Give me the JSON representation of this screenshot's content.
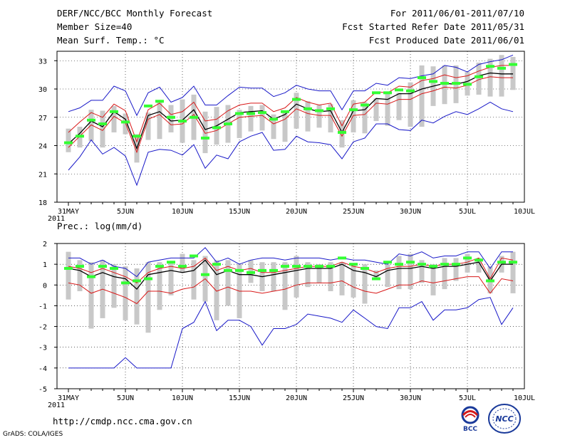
{
  "header": {
    "title": "DERF/NCC/BCC Monthly Forecast",
    "member_size": "Member Size=40",
    "variable": "Mean Surf. Temp.: °C",
    "period": "For 2011/06/01-2011/07/10",
    "refer_date": "Fcst Started Refer Date 2011/05/31",
    "produced_date": "Fcst Produced Date 2011/06/01"
  },
  "panel2_label": "Prec.: log(mm/d)",
  "footer": {
    "url": "http://cmdp.ncc.cma.gov.cn",
    "credit": "GrADS: COLA/IGES",
    "logo_bcc": "BCC",
    "logo_ncc": "NCC"
  },
  "colors": {
    "ensemble_bound": "#1818c8",
    "spread_line": "#d81818",
    "ensemble_mean": "#000000",
    "box": "#c8c8c8",
    "median": "#33ff33"
  },
  "chart_data": [
    {
      "type": "line",
      "title": "Mean Surf. Temp.: °C",
      "xlabel": "Date",
      "ylabel": "°C",
      "ylim": [
        18,
        34
      ],
      "yticks": [
        18,
        21,
        24,
        27,
        30,
        33
      ],
      "xtick_labels": [
        "31MAY",
        "5JUN",
        "10JUN",
        "15JUN",
        "20JUN",
        "25JUN",
        "30JUN",
        "5JUL",
        "10JUL"
      ],
      "xtick_year": "2011",
      "grid": true,
      "series": [
        {
          "name": "ensemble max",
          "color": "#1818c8",
          "values": [
            27.6,
            28.0,
            28.8,
            28.8,
            30.3,
            29.8,
            27.2,
            29.6,
            30.2,
            28.6,
            29.1,
            30.3,
            28.3,
            28.3,
            29.3,
            30.2,
            30.1,
            30.1,
            29.2,
            29.6,
            30.4,
            30.0,
            29.8,
            29.8,
            27.8,
            29.8,
            29.8,
            30.6,
            30.4,
            31.2,
            31.1,
            31.4,
            31.6,
            32.5,
            32.3,
            31.8,
            32.6,
            32.9,
            33.1,
            33.6
          ]
        },
        {
          "name": "upper spread",
          "color": "#d81818",
          "values": [
            25.4,
            26.5,
            27.5,
            27.0,
            28.4,
            27.7,
            24.4,
            27.8,
            28.5,
            27.3,
            27.6,
            28.6,
            26.6,
            26.8,
            27.7,
            28.3,
            28.5,
            28.5,
            27.6,
            28.0,
            29.1,
            28.6,
            28.3,
            28.5,
            26.1,
            28.4,
            28.6,
            29.7,
            29.6,
            30.3,
            30.2,
            30.9,
            31.1,
            31.5,
            31.2,
            31.4,
            31.9,
            32.3,
            32.5,
            32.5
          ]
        },
        {
          "name": "ensemble mean",
          "color": "#000000",
          "values": [
            24.2,
            25.3,
            26.6,
            26.0,
            27.6,
            26.8,
            23.7,
            27.2,
            27.6,
            26.6,
            26.7,
            27.8,
            25.7,
            26.1,
            26.8,
            27.5,
            27.6,
            27.7,
            26.8,
            27.3,
            28.4,
            27.9,
            27.6,
            27.7,
            25.4,
            27.7,
            27.8,
            29.0,
            28.9,
            29.5,
            29.5,
            30.0,
            30.3,
            30.6,
            30.5,
            30.8,
            31.4,
            31.7,
            31.6,
            31.6
          ]
        },
        {
          "name": "lower spread",
          "color": "#d81818",
          "values": [
            23.8,
            25.0,
            26.2,
            25.6,
            27.1,
            26.4,
            23.3,
            26.8,
            27.3,
            26.2,
            26.3,
            27.3,
            25.3,
            25.6,
            26.3,
            27.0,
            27.1,
            27.2,
            26.3,
            26.8,
            27.9,
            27.4,
            27.2,
            27.2,
            25.0,
            27.2,
            27.3,
            28.5,
            28.4,
            28.9,
            28.9,
            29.5,
            29.8,
            30.2,
            30.1,
            30.4,
            31.0,
            31.3,
            31.2,
            31.2
          ]
        },
        {
          "name": "ensemble min",
          "color": "#1818c8",
          "values": [
            21.4,
            22.8,
            24.6,
            23.1,
            23.8,
            22.9,
            19.8,
            23.3,
            23.6,
            23.5,
            23.0,
            24.1,
            21.6,
            23.0,
            22.6,
            24.4,
            25.0,
            25.4,
            23.5,
            23.6,
            25.0,
            24.4,
            24.3,
            24.1,
            22.6,
            24.4,
            24.8,
            26.3,
            26.3,
            25.7,
            25.6,
            26.7,
            26.4,
            27.1,
            27.6,
            27.3,
            27.9,
            28.6,
            27.9,
            27.6
          ]
        },
        {
          "name": "box upper",
          "color": "#c8c8c8",
          "values": [
            25.8,
            26.0,
            27.8,
            27.7,
            28.2,
            27.4,
            25.2,
            27.5,
            28.7,
            28.3,
            28.9,
            29.4,
            27.6,
            28.1,
            28.3,
            27.8,
            28.2,
            28.3,
            27.3,
            27.5,
            29.6,
            28.7,
            28.3,
            28.4,
            26.7,
            28.8,
            28.6,
            29.0,
            29.6,
            29.6,
            30.7,
            32.5,
            32.4,
            32.5,
            32.5,
            31.8,
            32.8,
            33.2,
            33.6,
            33.4
          ]
        },
        {
          "name": "box lower",
          "color": "#c8c8c8",
          "values": [
            23.3,
            23.8,
            24.5,
            23.8,
            25.4,
            25.2,
            22.2,
            24.6,
            24.7,
            25.4,
            24.3,
            24.6,
            23.2,
            24.1,
            24.3,
            24.8,
            25.5,
            25.6,
            24.7,
            24.4,
            25.8,
            25.5,
            25.9,
            25.4,
            23.8,
            25.4,
            25.3,
            26.6,
            26.1,
            26.7,
            26.0,
            26.0,
            28.2,
            28.4,
            28.5,
            29.3,
            29.4,
            29.2,
            29.2,
            29.9
          ]
        },
        {
          "name": "median",
          "color": "#33ff33",
          "values": [
            24.3,
            25.0,
            26.7,
            26.3,
            27.6,
            26.5,
            25.0,
            28.2,
            28.7,
            27.0,
            26.6,
            27.0,
            24.8,
            25.9,
            26.3,
            27.4,
            27.4,
            27.5,
            26.8,
            27.6,
            28.9,
            27.9,
            27.7,
            27.9,
            25.4,
            27.8,
            28.3,
            29.6,
            29.6,
            29.9,
            29.8,
            31.2,
            30.8,
            30.6,
            30.6,
            30.5,
            31.3,
            32.4,
            32.2,
            32.6
          ]
        }
      ]
    },
    {
      "type": "line",
      "title": "Prec.: log(mm/d)",
      "xlabel": "Date",
      "ylabel": "log(mm/d)",
      "ylim": [
        -5,
        2
      ],
      "yticks": [
        -5,
        -4,
        -3,
        -2,
        -1,
        0,
        1,
        2
      ],
      "xtick_labels": [
        "31MAY",
        "5JUN",
        "10JUN",
        "15JUN",
        "20JUN",
        "25JUN",
        "30JUN",
        "5JUL",
        "10JUL"
      ],
      "xtick_year": "2011",
      "grid": true,
      "series": [
        {
          "name": "ensemble max",
          "color": "#1818c8",
          "values": [
            1.3,
            1.3,
            1.0,
            1.2,
            0.9,
            0.8,
            0.4,
            1.1,
            1.2,
            1.3,
            1.3,
            1.3,
            1.8,
            1.1,
            1.3,
            1.0,
            1.2,
            1.3,
            1.3,
            1.2,
            1.3,
            1.3,
            1.3,
            1.2,
            1.3,
            1.2,
            1.2,
            1.1,
            1.0,
            1.5,
            1.4,
            1.6,
            1.3,
            1.4,
            1.4,
            1.6,
            1.6,
            0.8,
            1.6,
            1.6
          ]
        },
        {
          "name": "upper spread",
          "color": "#d81818",
          "values": [
            0.9,
            0.8,
            0.6,
            0.8,
            0.6,
            0.4,
            0.1,
            0.6,
            0.8,
            0.9,
            0.8,
            0.9,
            1.3,
            0.7,
            0.9,
            0.7,
            0.8,
            0.6,
            0.6,
            0.7,
            0.8,
            0.9,
            0.9,
            0.9,
            1.1,
            0.9,
            0.8,
            0.6,
            0.8,
            0.9,
            0.9,
            1.0,
            0.9,
            1.0,
            1.0,
            1.1,
            1.3,
            0.3,
            1.3,
            1.2
          ]
        },
        {
          "name": "ensemble mean",
          "color": "#000000",
          "values": [
            0.8,
            0.7,
            0.4,
            0.6,
            0.4,
            0.3,
            -0.2,
            0.5,
            0.6,
            0.7,
            0.6,
            0.7,
            1.2,
            0.5,
            0.7,
            0.5,
            0.5,
            0.4,
            0.5,
            0.6,
            0.7,
            0.8,
            0.8,
            0.8,
            1.0,
            0.7,
            0.6,
            0.4,
            0.7,
            0.8,
            0.8,
            0.9,
            0.8,
            0.9,
            0.9,
            1.0,
            1.1,
            0.2,
            1.0,
            1.0
          ]
        },
        {
          "name": "lower spread",
          "color": "#d81818",
          "values": [
            0.1,
            0.0,
            -0.4,
            -0.2,
            -0.4,
            -0.6,
            -0.9,
            -0.3,
            -0.3,
            -0.4,
            -0.2,
            -0.1,
            0.3,
            -0.3,
            -0.1,
            -0.3,
            -0.3,
            -0.4,
            -0.3,
            -0.2,
            0.0,
            0.1,
            0.1,
            0.1,
            0.2,
            -0.1,
            -0.3,
            -0.4,
            -0.2,
            0.0,
            0.0,
            0.2,
            0.1,
            0.2,
            0.3,
            0.4,
            0.4,
            -0.4,
            0.3,
            0.2
          ]
        },
        {
          "name": "ensemble min",
          "color": "#1818c8",
          "values": [
            -4.0,
            -4.0,
            -4.0,
            -4.0,
            -4.0,
            -3.5,
            -4.0,
            -4.0,
            -4.0,
            -4.0,
            -2.1,
            -1.8,
            -0.8,
            -2.2,
            -1.7,
            -1.7,
            -2.0,
            -2.9,
            -2.1,
            -2.1,
            -1.9,
            -1.4,
            -1.5,
            -1.6,
            -1.8,
            -1.2,
            -1.6,
            -2.0,
            -2.1,
            -1.1,
            -1.1,
            -0.8,
            -1.7,
            -1.2,
            -1.2,
            -1.1,
            -0.7,
            -0.6,
            -1.9,
            -1.1
          ]
        },
        {
          "name": "box upper",
          "color": "#c8c8c8",
          "values": [
            1.6,
            1.2,
            1.1,
            1.2,
            1.0,
            0.9,
            0.8,
            1.1,
            1.1,
            1.1,
            1.5,
            1.2,
            1.4,
            1.2,
            1.2,
            1.0,
            1.2,
            1.1,
            1.1,
            1.1,
            1.4,
            1.1,
            1.0,
            1.1,
            1.1,
            1.0,
            1.0,
            0.7,
            1.0,
            1.4,
            1.5,
            1.2,
            1.0,
            1.3,
            1.3,
            1.5,
            1.3,
            0.9,
            1.4,
            1.6
          ]
        },
        {
          "name": "box lower",
          "color": "#c8c8c8",
          "values": [
            -0.7,
            -0.3,
            -2.1,
            -1.6,
            -1.1,
            -1.7,
            -1.9,
            -2.3,
            -1.2,
            -0.5,
            0.6,
            -0.7,
            -0.8,
            -1.7,
            -1.0,
            -1.6,
            0.1,
            -0.3,
            -0.3,
            -1.2,
            -0.6,
            -0.1,
            0.1,
            -0.3,
            -0.5,
            -0.6,
            -0.9,
            0.3,
            -0.1,
            -0.2,
            -0.2,
            0.1,
            -0.5,
            -0.2,
            0.2,
            0.6,
            0.6,
            -0.4,
            0.6,
            -0.4
          ]
        },
        {
          "name": "median",
          "color": "#33ff33",
          "values": [
            0.8,
            0.9,
            0.4,
            0.9,
            0.8,
            0.1,
            0.2,
            0.3,
            0.9,
            1.1,
            0.9,
            1.4,
            0.5,
            1.0,
            0.7,
            0.7,
            0.6,
            0.7,
            0.7,
            0.9,
            0.9,
            0.9,
            0.9,
            0.9,
            1.3,
            1.0,
            0.8,
            0.3,
            1.1,
            1.0,
            1.1,
            1.0,
            0.9,
            1.0,
            1.0,
            1.3,
            1.2,
            0.2,
            1.1,
            1.1
          ]
        }
      ]
    }
  ]
}
